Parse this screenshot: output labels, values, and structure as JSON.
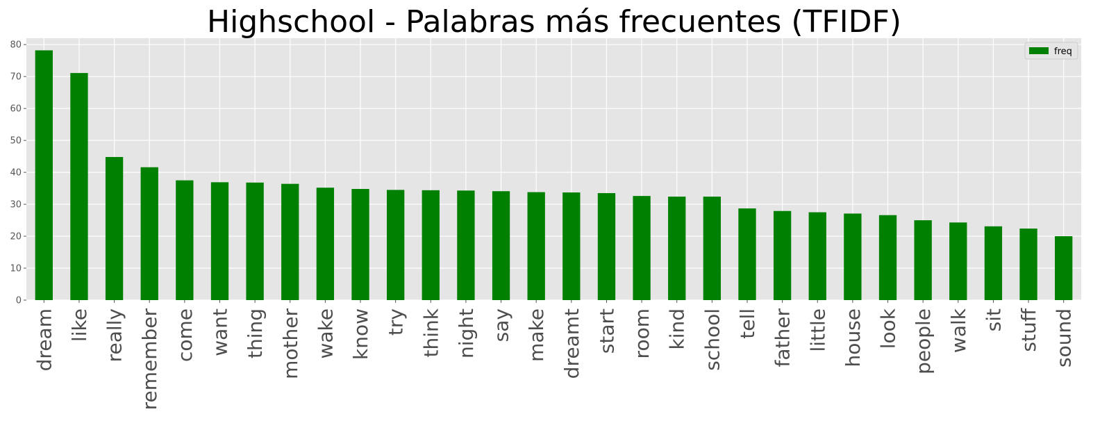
{
  "chart_data": {
    "type": "bar",
    "title": "Highschool - Palabras más frecuentes (TFIDF)",
    "xlabel": "",
    "ylabel": "",
    "categories": [
      "dream",
      "like",
      "really",
      "remember",
      "come",
      "want",
      "thing",
      "mother",
      "wake",
      "know",
      "try",
      "think",
      "night",
      "say",
      "make",
      "dreamt",
      "start",
      "room",
      "kind",
      "school",
      "tell",
      "father",
      "little",
      "house",
      "look",
      "people",
      "walk",
      "sit",
      "stuff",
      "sound"
    ],
    "series": [
      {
        "name": "freq",
        "color": "#008000",
        "values": [
          78.2,
          71.1,
          44.8,
          41.6,
          37.5,
          36.9,
          36.8,
          36.4,
          35.2,
          34.8,
          34.5,
          34.4,
          34.3,
          34.1,
          33.8,
          33.7,
          33.5,
          32.6,
          32.4,
          32.4,
          28.7,
          27.9,
          27.5,
          27.1,
          26.6,
          25.0,
          24.3,
          23.1,
          22.4,
          20.0
        ]
      }
    ],
    "ylim": [
      0,
      82
    ],
    "yticks": [
      0,
      10,
      20,
      30,
      40,
      50,
      60,
      70,
      80
    ],
    "grid": true,
    "legend_position": "top-right",
    "background_color": "#e5e5e5",
    "grid_color": "#ffffff"
  }
}
